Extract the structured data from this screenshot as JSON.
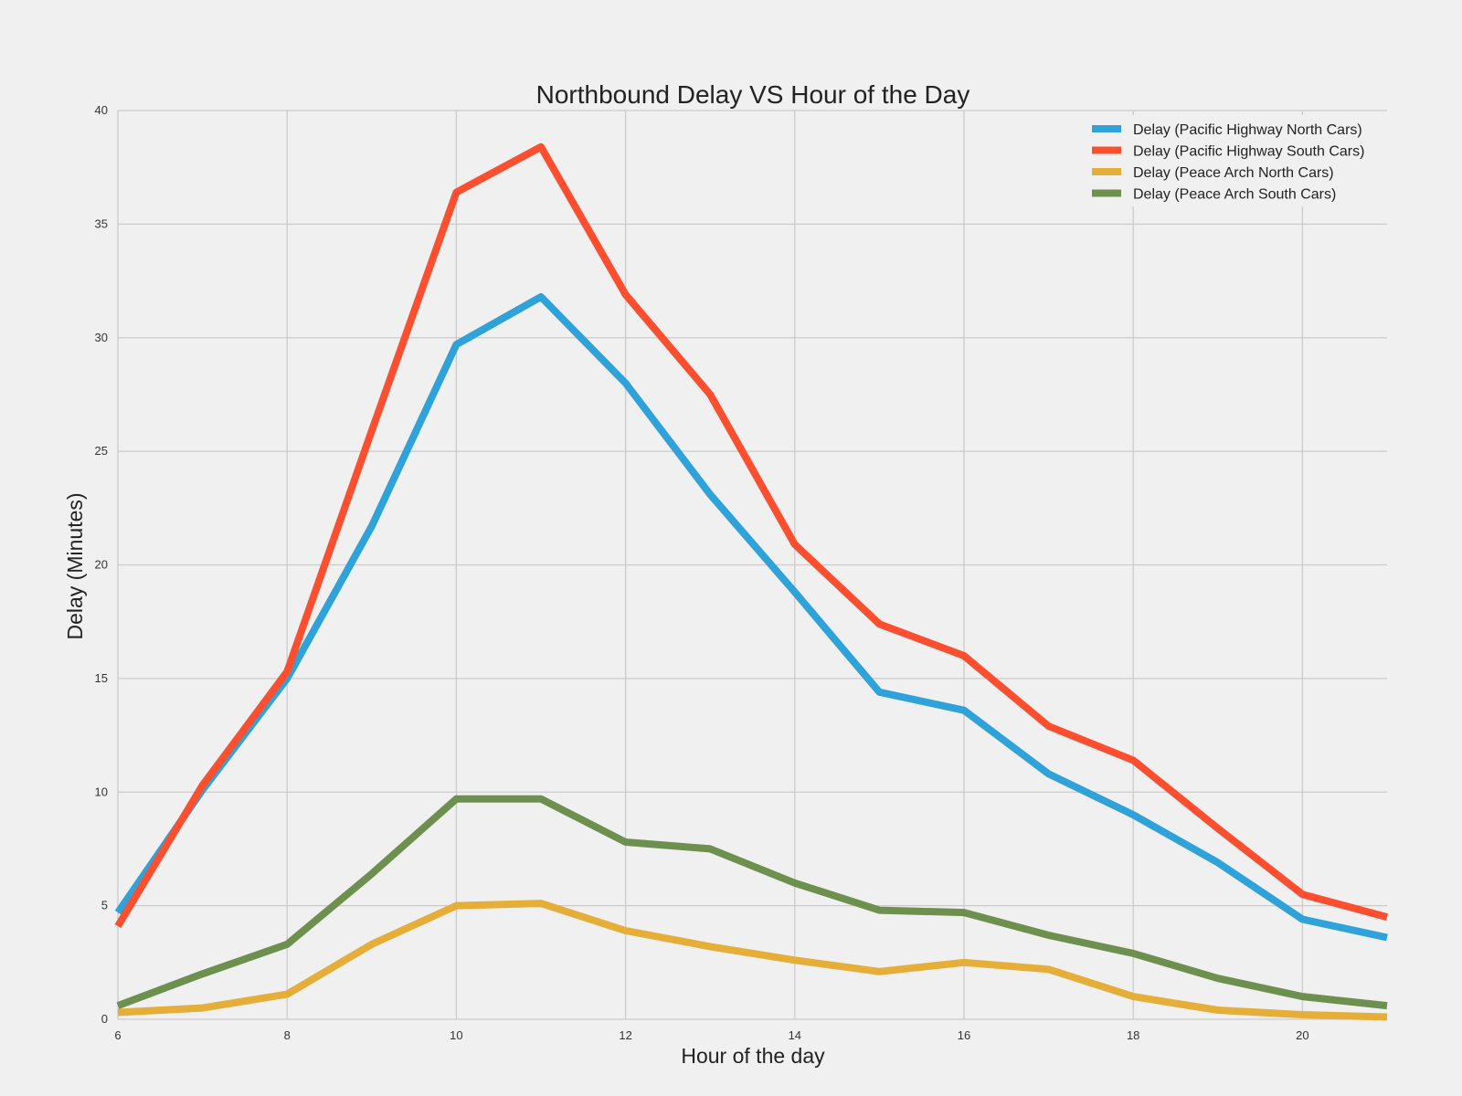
{
  "chart_data": {
    "type": "line",
    "title": "Northbound Delay VS Hour of the Day",
    "xlabel": "Hour of the day",
    "ylabel": "Delay (Minutes)",
    "xlim": [
      6,
      21
    ],
    "ylim": [
      0,
      40
    ],
    "xticks": [
      6,
      8,
      10,
      12,
      14,
      16,
      18,
      20
    ],
    "yticks": [
      0,
      5,
      10,
      15,
      20,
      25,
      30,
      35,
      40
    ],
    "grid": true,
    "legend_position": "top-right",
    "x": [
      6,
      7,
      8,
      9,
      10,
      11,
      12,
      13,
      14,
      15,
      16,
      17,
      18,
      19,
      20,
      21
    ],
    "series": [
      {
        "name": "Delay (Pacific Highway North Cars)",
        "color": "#30a2da",
        "values": [
          4.7,
          10.1,
          15.0,
          21.7,
          29.7,
          31.8,
          28.0,
          23.1,
          18.8,
          14.4,
          13.6,
          10.8,
          9.0,
          6.9,
          4.4,
          3.6
        ]
      },
      {
        "name": "Delay (Pacific Highway South Cars)",
        "color": "#fc4f30",
        "values": [
          4.1,
          10.3,
          15.3,
          25.9,
          36.4,
          38.4,
          31.9,
          27.5,
          20.9,
          17.4,
          16.0,
          12.9,
          11.4,
          8.4,
          5.5,
          4.5
        ]
      },
      {
        "name": "Delay (Peace Arch North Cars)",
        "color": "#e5ae38",
        "values": [
          0.3,
          0.5,
          1.1,
          3.3,
          5.0,
          5.1,
          3.9,
          3.2,
          2.6,
          2.1,
          2.5,
          2.2,
          1.0,
          0.4,
          0.2,
          0.1
        ]
      },
      {
        "name": "Delay (Peace Arch South Cars)",
        "color": "#6d904f",
        "values": [
          0.6,
          2.0,
          3.3,
          6.4,
          9.7,
          9.7,
          7.8,
          7.5,
          6.0,
          4.8,
          4.7,
          3.7,
          2.9,
          1.8,
          1.0,
          0.6
        ]
      }
    ]
  }
}
